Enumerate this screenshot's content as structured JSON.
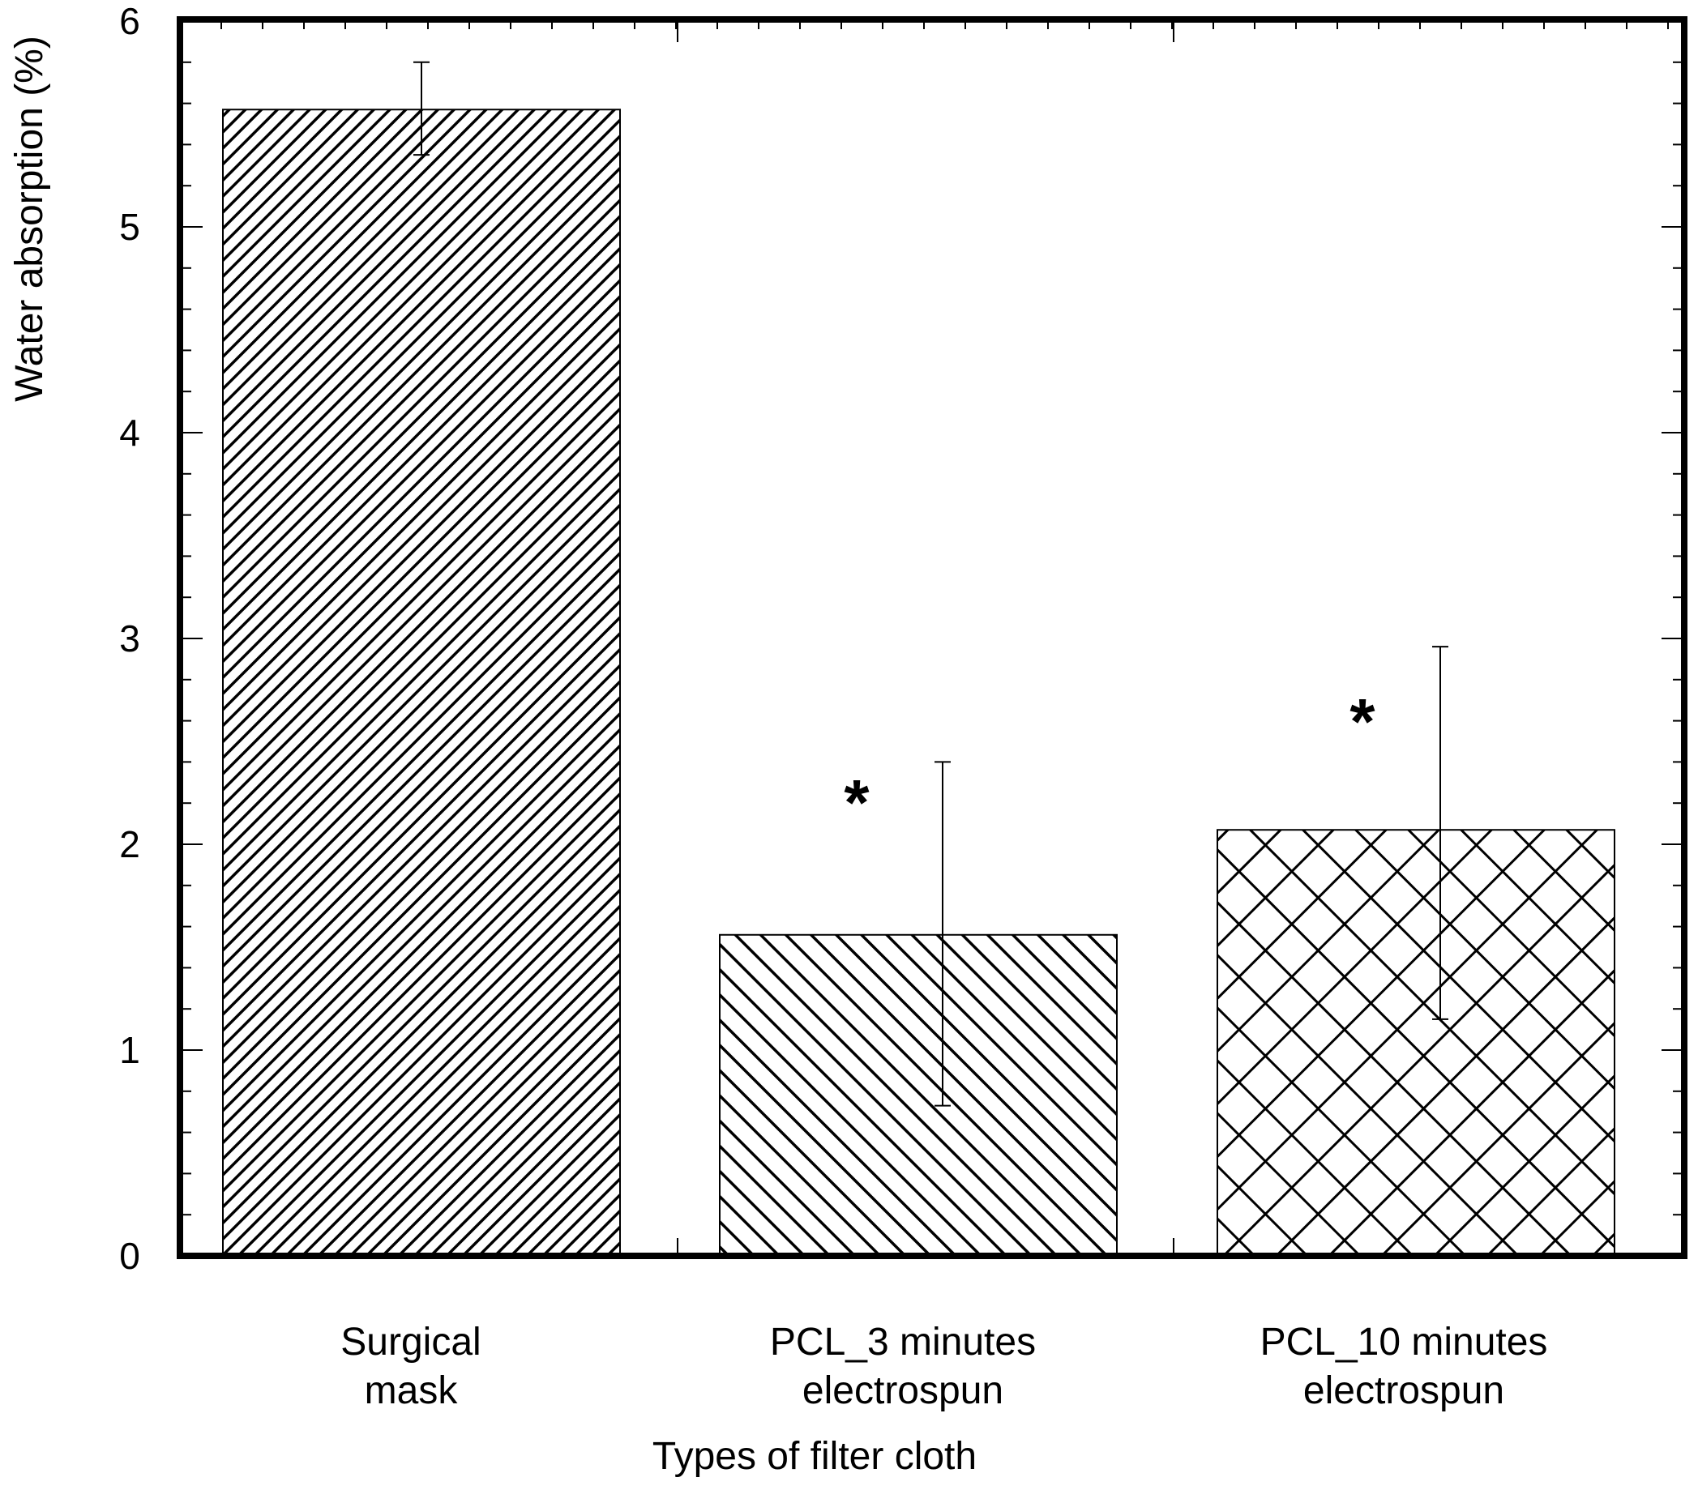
{
  "chart_data": {
    "type": "bar",
    "title": "",
    "xlabel": "Types of filter cloth",
    "ylabel": "Water absorption (%)",
    "ylim": [
      0,
      6
    ],
    "yticks": [
      0,
      1,
      2,
      3,
      4,
      5,
      6
    ],
    "grid": false,
    "categories": [
      {
        "line1": "Surgical",
        "line2": "mask"
      },
      {
        "line1": "PCL_3 minutes",
        "line2": "electrospun"
      },
      {
        "line1": "PCL_10 minutes",
        "line2": "electrospun"
      }
    ],
    "values": [
      5.57,
      1.56,
      2.07
    ],
    "error_upper": [
      5.8,
      2.4,
      2.96
    ],
    "error_lower": [
      5.35,
      0.73,
      1.15
    ],
    "patterns": [
      "dense-diagonal",
      "diagonal",
      "crosshatch"
    ],
    "annotations": [
      "",
      "*",
      "*"
    ]
  }
}
